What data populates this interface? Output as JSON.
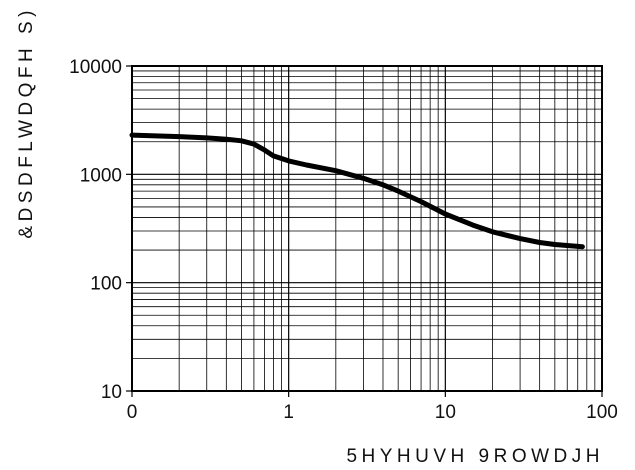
{
  "chart_data": {
    "type": "line",
    "title": "",
    "xlabel": "5HYHUVH 9ROWDJH",
    "ylabel": "&DSDFLWDQFH S)",
    "x_scale": "log",
    "y_scale": "log",
    "xlim": [
      0.1,
      100
    ],
    "ylim": [
      10,
      10000
    ],
    "grid": true,
    "x_ticks": [
      "0",
      "1",
      "10",
      "100"
    ],
    "y_ticks": [
      "10000",
      "1000",
      "100",
      "10"
    ],
    "series": [
      {
        "x": [
          0.1,
          0.2,
          0.3,
          0.4,
          0.5,
          0.6,
          0.7,
          0.8,
          1.0,
          1.3,
          2.0,
          3.0,
          4.0,
          5.0,
          7.0,
          10,
          15,
          20,
          30,
          40,
          50,
          75
        ],
        "y": [
          2300,
          2230,
          2170,
          2110,
          2040,
          1900,
          1680,
          1480,
          1330,
          1220,
          1080,
          920,
          800,
          700,
          560,
          430,
          340,
          295,
          255,
          235,
          225,
          215
        ]
      }
    ]
  }
}
